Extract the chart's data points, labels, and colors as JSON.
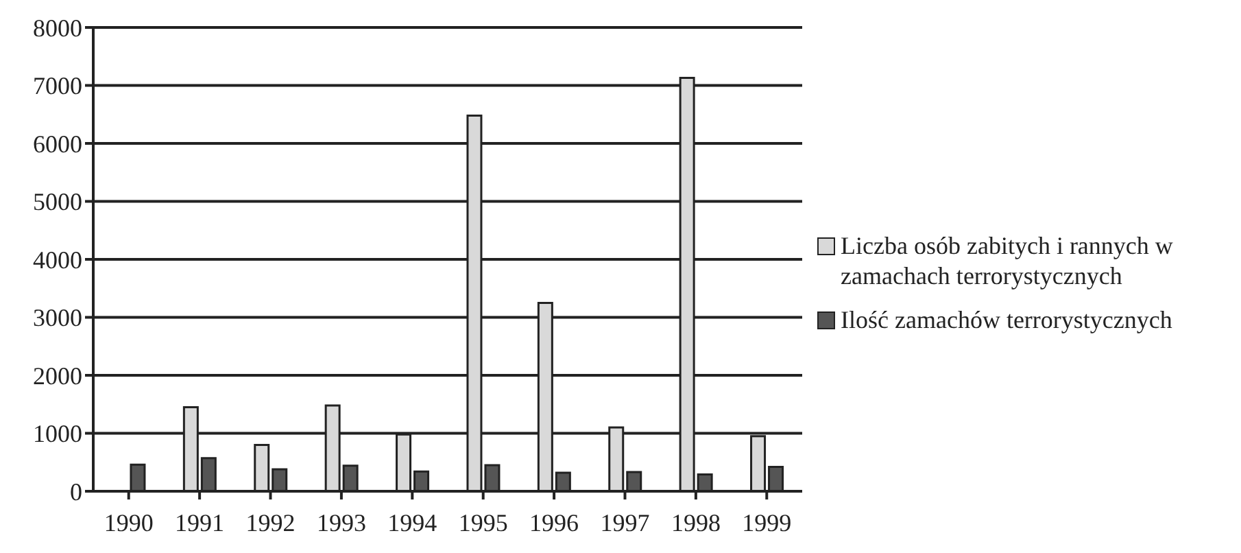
{
  "chart_data": {
    "type": "bar",
    "categories": [
      "1990",
      "1991",
      "1992",
      "1993",
      "1994",
      "1995",
      "1996",
      "1997",
      "1998",
      "1999"
    ],
    "series": [
      {
        "name": "Liczba osób zabitych i rannych w zamachach terrorystycznych",
        "color": "#d9d9d9",
        "values": [
          null,
          1450,
          800,
          1480,
          980,
          6480,
          3250,
          1100,
          7130,
          950
        ]
      },
      {
        "name": "Ilość zamachów terrorystycznych",
        "color": "#555555",
        "values": [
          460,
          570,
          380,
          440,
          340,
          450,
          320,
          330,
          290,
          420
        ]
      }
    ],
    "ylim": [
      0,
      8000
    ],
    "yticks": [
      0,
      1000,
      2000,
      3000,
      4000,
      5000,
      6000,
      7000,
      8000
    ],
    "grid": "y",
    "legend": "right"
  }
}
